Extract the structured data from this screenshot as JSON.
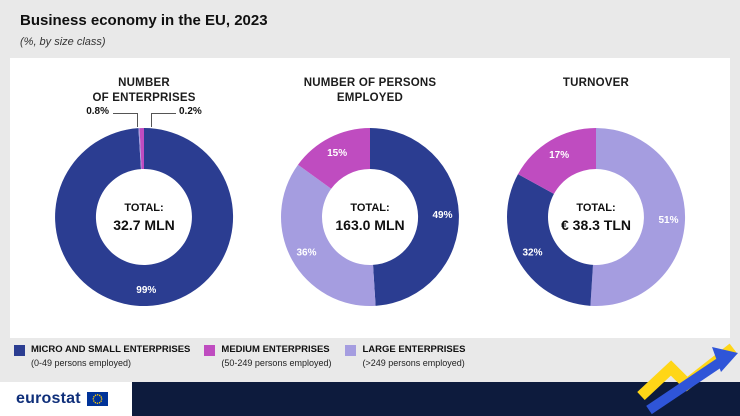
{
  "title": "Business economy in the EU, 2023",
  "subtitle": "(%, by size class)",
  "colors": {
    "micro": "#2b3d91",
    "medium": "#bf4cc0",
    "large": "#a59de0",
    "background": "#e9e9e9",
    "panel": "#ffffff",
    "footer_navy": "#0d1b3d",
    "logo_blue": "#0f2f7a",
    "flag_blue": "#003399",
    "star_yellow": "#ffcc00",
    "accent_yellow": "#ffd617",
    "accent_blue": "#2f55d8"
  },
  "chart_data": [
    {
      "type": "pie",
      "variant": "donut",
      "heading": "NUMBER\nOF ENTERPRISES",
      "unit": "%",
      "start_angle_deg": 0,
      "direction": "clockwise",
      "total_label": "TOTAL:",
      "total_value": "32.7 MLN",
      "slices": [
        {
          "category": "micro-small-enterprises",
          "value": 99,
          "label": "99%",
          "color": "micro",
          "label_inside": true
        },
        {
          "category": "large-enterprises",
          "value": 0.2,
          "label": "0.2%",
          "color": "large",
          "label_inside": false
        },
        {
          "category": "medium-enterprises",
          "value": 0.8,
          "label": "0.8%",
          "color": "medium",
          "label_inside": false
        }
      ],
      "callouts": [
        {
          "text": "0.8%",
          "side": "left"
        },
        {
          "text": "0.2%",
          "side": "right"
        }
      ]
    },
    {
      "type": "pie",
      "variant": "donut",
      "heading": "NUMBER OF PERSONS\nEMPLOYED",
      "unit": "%",
      "start_angle_deg": 0,
      "direction": "clockwise",
      "total_label": "TOTAL:",
      "total_value": "163.0 MLN",
      "slices": [
        {
          "category": "micro-small-enterprises",
          "value": 49,
          "label": "49%",
          "color": "micro",
          "label_inside": true
        },
        {
          "category": "large-enterprises",
          "value": 36,
          "label": "36%",
          "color": "large",
          "label_inside": true
        },
        {
          "category": "medium-enterprises",
          "value": 15,
          "label": "15%",
          "color": "medium",
          "label_inside": true
        }
      ],
      "callouts": []
    },
    {
      "type": "pie",
      "variant": "donut",
      "heading": "TURNOVER",
      "unit": "%",
      "start_angle_deg": 0,
      "direction": "clockwise",
      "total_label": "TOTAL:",
      "total_value": "€ 38.3 TLN",
      "slices": [
        {
          "category": "large-enterprises",
          "value": 51,
          "label": "51%",
          "color": "large",
          "label_inside": true
        },
        {
          "category": "micro-small-enterprises",
          "value": 32,
          "label": "32%",
          "color": "micro",
          "label_inside": true
        },
        {
          "category": "medium-enterprises",
          "value": 17,
          "label": "17%",
          "color": "medium",
          "label_inside": true
        }
      ],
      "callouts": []
    }
  ],
  "legend": [
    {
      "label": "MICRO AND SMALL ENTERPRISES",
      "sublabel": "(0-49 persons employed)",
      "color": "micro"
    },
    {
      "label": "MEDIUM ENTERPRISES",
      "sublabel": "(50-249 persons employed)",
      "color": "medium"
    },
    {
      "label": "LARGE ENTERPRISES",
      "sublabel": "(>249 persons employed)",
      "color": "large"
    }
  ],
  "footer": {
    "logo_text": "eurostat"
  }
}
